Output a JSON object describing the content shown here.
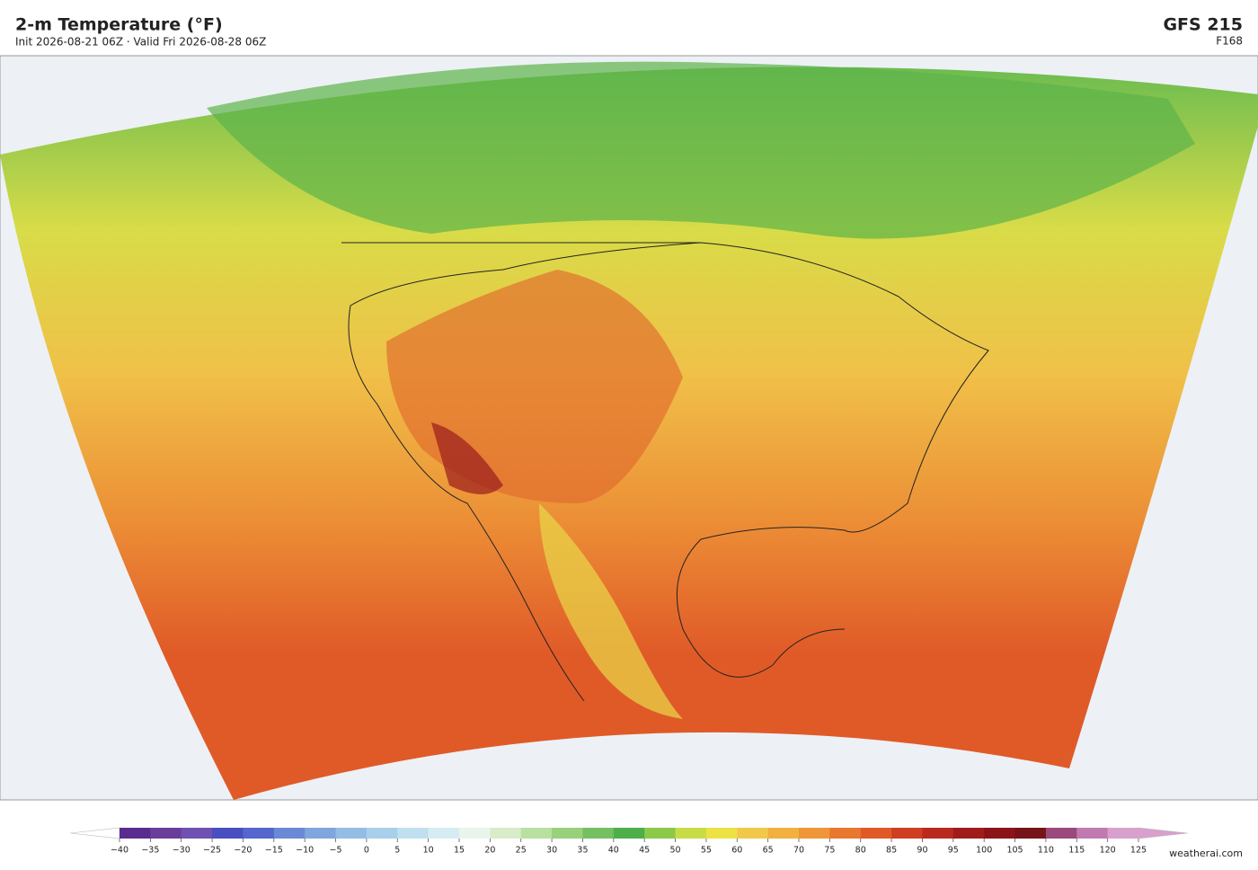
{
  "header": {
    "title": "2-m Temperature  (°F)",
    "subtitle": "Init 2026-08-21 06Z  ·  Valid Fri 2026-08-28 06Z",
    "model": "GFS  215",
    "forecast_hour": "F168"
  },
  "colorbar": {
    "lim": [
      -40,
      125
    ],
    "ticks": [
      {
        "value": -40,
        "label": "−40"
      },
      {
        "value": -35,
        "label": "−35"
      },
      {
        "value": -30,
        "label": "−30"
      },
      {
        "value": -25,
        "label": "−25"
      },
      {
        "value": -20,
        "label": "−20"
      },
      {
        "value": -15,
        "label": "−15"
      },
      {
        "value": -10,
        "label": "−10"
      },
      {
        "value": -5,
        "label": "−5"
      },
      0,
      5,
      10,
      15,
      20,
      25,
      30,
      35,
      40,
      45,
      50,
      55,
      60,
      65,
      70,
      75,
      80,
      85,
      90,
      95,
      100,
      105,
      110,
      115,
      120,
      125
    ],
    "colors": [
      "#5b2c8f",
      "#6a3d9a",
      "#7050b0",
      "#4a4fc0",
      "#5566cc",
      "#6a8ad6",
      "#7fa6dd",
      "#93bde4",
      "#a8d0ea",
      "#c0e0ef",
      "#d6ecf2",
      "#e8f4ec",
      "#d8ecc8",
      "#b8e0a0",
      "#98d07c",
      "#74c060",
      "#4eae4a",
      "#8cc84a",
      "#c8dc48",
      "#ece244",
      "#f2c84a",
      "#f2b040",
      "#ee9638",
      "#e87830",
      "#e05a28",
      "#d03e22",
      "#b82a1e",
      "#a01c1c",
      "#8a1418",
      "#741418",
      "#9a4a7a",
      "#c07ab0",
      "#d8a0cc"
    ],
    "under_color": "#ffffff",
    "over_color": "#d8a0cc"
  },
  "footer": {
    "credit": "weatherai.com"
  }
}
